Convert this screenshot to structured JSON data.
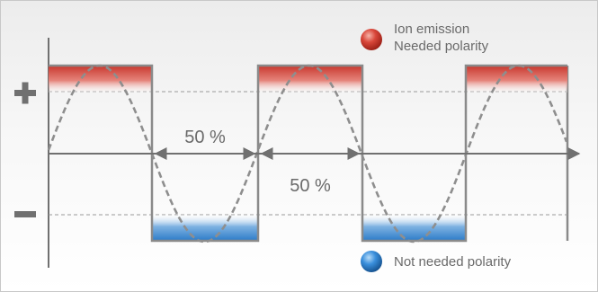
{
  "legend": {
    "ion_emission": "Ion emission",
    "needed_polarity": "Needed polarity",
    "not_needed_polarity": "Not needed polarity"
  },
  "annotations": {
    "duty_upper": "50 %",
    "duty_lower": "50 %"
  },
  "symbols": {
    "positive": "plus-sign",
    "negative": "minus-sign"
  },
  "colors": {
    "positive_fill": "#c8372d",
    "negative_fill": "#2c7bc8",
    "square_wave": "#8a8a8a",
    "sine_wave": "#8a8a8a",
    "axis": "#707070"
  }
}
